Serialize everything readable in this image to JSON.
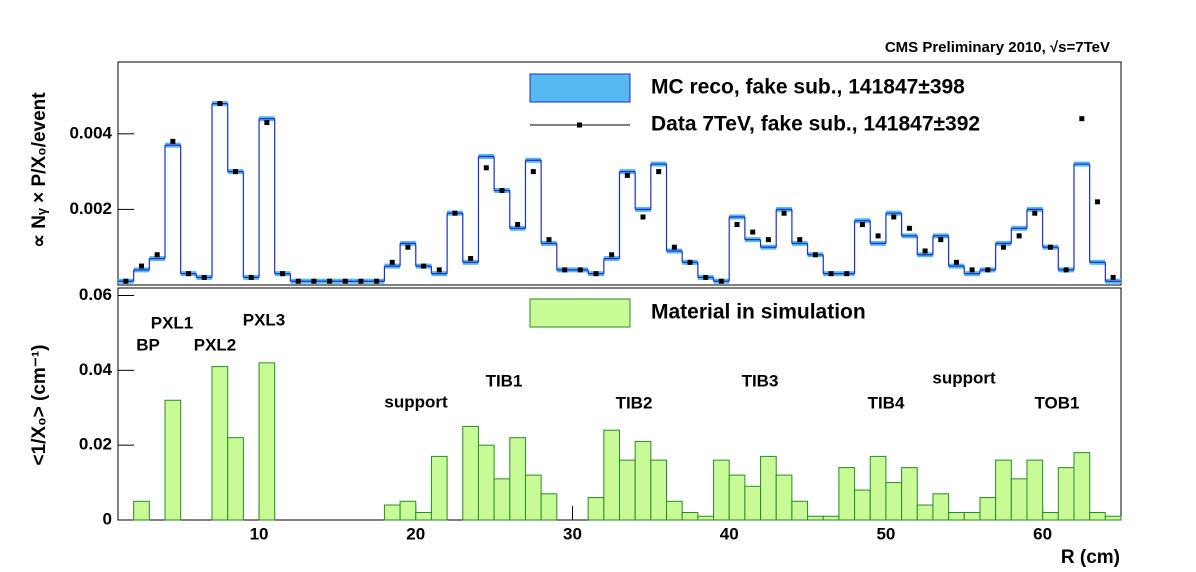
{
  "chart_data": [
    {
      "type": "histogram",
      "title": "CMS Preliminary 2010, √s=7TeV",
      "y_label": "∝ Nᵧ × P/X₀/event",
      "bins": [
        1,
        2,
        3,
        4,
        5,
        6,
        7,
        8,
        9,
        10,
        11,
        12,
        13,
        14,
        15,
        16,
        17,
        18,
        19,
        20,
        21,
        22,
        23,
        24,
        25,
        26,
        27,
        28,
        29,
        30,
        31,
        32,
        33,
        34,
        35,
        36,
        37,
        38,
        39,
        40,
        41,
        42,
        43,
        44,
        45,
        46,
        47,
        48,
        49,
        50,
        51,
        52,
        53,
        54,
        55,
        56,
        57,
        58,
        59,
        60,
        61,
        62,
        63,
        64,
        65
      ],
      "xlim": [
        1,
        65
      ],
      "ylim": [
        0,
        0.0059
      ],
      "yticks": [
        0.002,
        0.004
      ],
      "series": [
        {
          "name": "MC reco, fake sub., 141847±398",
          "color": "#1c2fc4",
          "band_color": "#55b8f0",
          "style": "step",
          "values": [
            0.0001,
            0.0004,
            0.0007,
            0.0037,
            0.0003,
            0.0002,
            0.0048,
            0.003,
            0.0002,
            0.0044,
            0.0003,
            0.0001,
            0.0001,
            0.0001,
            0.0001,
            0.0001,
            0.0001,
            0.0005,
            0.0011,
            0.0005,
            0.0003,
            0.0019,
            0.0006,
            0.0034,
            0.0025,
            0.0015,
            0.0033,
            0.0011,
            0.0004,
            0.0004,
            0.0003,
            0.0007,
            0.003,
            0.002,
            0.0032,
            0.0009,
            0.0006,
            0.0002,
            0.0001,
            0.0018,
            0.0012,
            0.001,
            0.002,
            0.0011,
            0.0008,
            0.0003,
            0.0003,
            0.0017,
            0.0011,
            0.0019,
            0.0013,
            0.0008,
            0.0013,
            0.0005,
            0.0003,
            0.0004,
            0.0011,
            0.0015,
            0.002,
            0.001,
            0.0004,
            0.0032,
            0.0006,
            0.0001
          ]
        },
        {
          "name": "Data 7TeV, fake sub., 141847±392",
          "color": "#000000",
          "style": "markers",
          "values": [
            0.0001,
            0.0005,
            0.0008,
            0.0038,
            0.0003,
            0.0002,
            0.0048,
            0.003,
            0.0002,
            0.0043,
            0.0003,
            0.0001,
            0.0001,
            0.0001,
            0.0001,
            0.0001,
            0.0001,
            0.0006,
            0.001,
            0.0005,
            0.0004,
            0.0019,
            0.0007,
            0.0031,
            0.0025,
            0.0016,
            0.003,
            0.0012,
            0.0004,
            0.0004,
            0.0003,
            0.0008,
            0.0029,
            0.0018,
            0.003,
            0.001,
            0.0006,
            0.0002,
            0.0001,
            0.0016,
            0.0014,
            0.0012,
            0.0019,
            0.0012,
            0.0008,
            0.0003,
            0.0003,
            0.0016,
            0.0013,
            0.0018,
            0.0015,
            0.0009,
            0.0012,
            0.0006,
            0.0004,
            0.0004,
            0.001,
            0.0013,
            0.0019,
            0.001,
            0.0004,
            0.0044,
            0.0022,
            0.0002
          ]
        }
      ]
    },
    {
      "type": "histogram",
      "y_label": "<1/X₀> (cm⁻¹)",
      "x_label": "R (cm)",
      "bins": [
        1,
        2,
        3,
        4,
        5,
        6,
        7,
        8,
        9,
        10,
        11,
        12,
        13,
        14,
        15,
        16,
        17,
        18,
        19,
        20,
        21,
        22,
        23,
        24,
        25,
        26,
        27,
        28,
        29,
        30,
        31,
        32,
        33,
        34,
        35,
        36,
        37,
        38,
        39,
        40,
        41,
        42,
        43,
        44,
        45,
        46,
        47,
        48,
        49,
        50,
        51,
        52,
        53,
        54,
        55,
        56,
        57,
        58,
        59,
        60,
        61,
        62,
        63,
        64,
        65
      ],
      "xlim": [
        1,
        65
      ],
      "xticks": [
        10,
        20,
        30,
        40,
        50,
        60
      ],
      "ylim": [
        0,
        0.062
      ],
      "yticks": [
        0,
        0.02,
        0.04,
        0.06
      ],
      "annotations": [
        "BP",
        "PXL1",
        "PXL2",
        "PXL3",
        "support",
        "TIB1",
        "TIB2",
        "TIB3",
        "TIB4",
        "support",
        "TOB1"
      ],
      "series": [
        {
          "name": "Material in simulation",
          "color": "#c8fa96",
          "edge_color": "#2a8a2a",
          "style": "filled",
          "values": [
            0,
            0.005,
            0,
            0.032,
            0,
            0,
            0.041,
            0.022,
            0,
            0.042,
            0,
            0,
            0,
            0,
            0,
            0,
            0,
            0.004,
            0.005,
            0.002,
            0.017,
            0,
            0.025,
            0.02,
            0.011,
            0.022,
            0.012,
            0.007,
            0,
            0,
            0.006,
            0.024,
            0.016,
            0.021,
            0.016,
            0.005,
            0.002,
            0.001,
            0.016,
            0.012,
            0.009,
            0.017,
            0.012,
            0.005,
            0.001,
            0.001,
            0.014,
            0.008,
            0.017,
            0.01,
            0.014,
            0.004,
            0.007,
            0.002,
            0.002,
            0.006,
            0.016,
            0.011,
            0.016,
            0.002,
            0.014,
            0.018,
            0.002,
            0.001
          ]
        }
      ]
    }
  ]
}
